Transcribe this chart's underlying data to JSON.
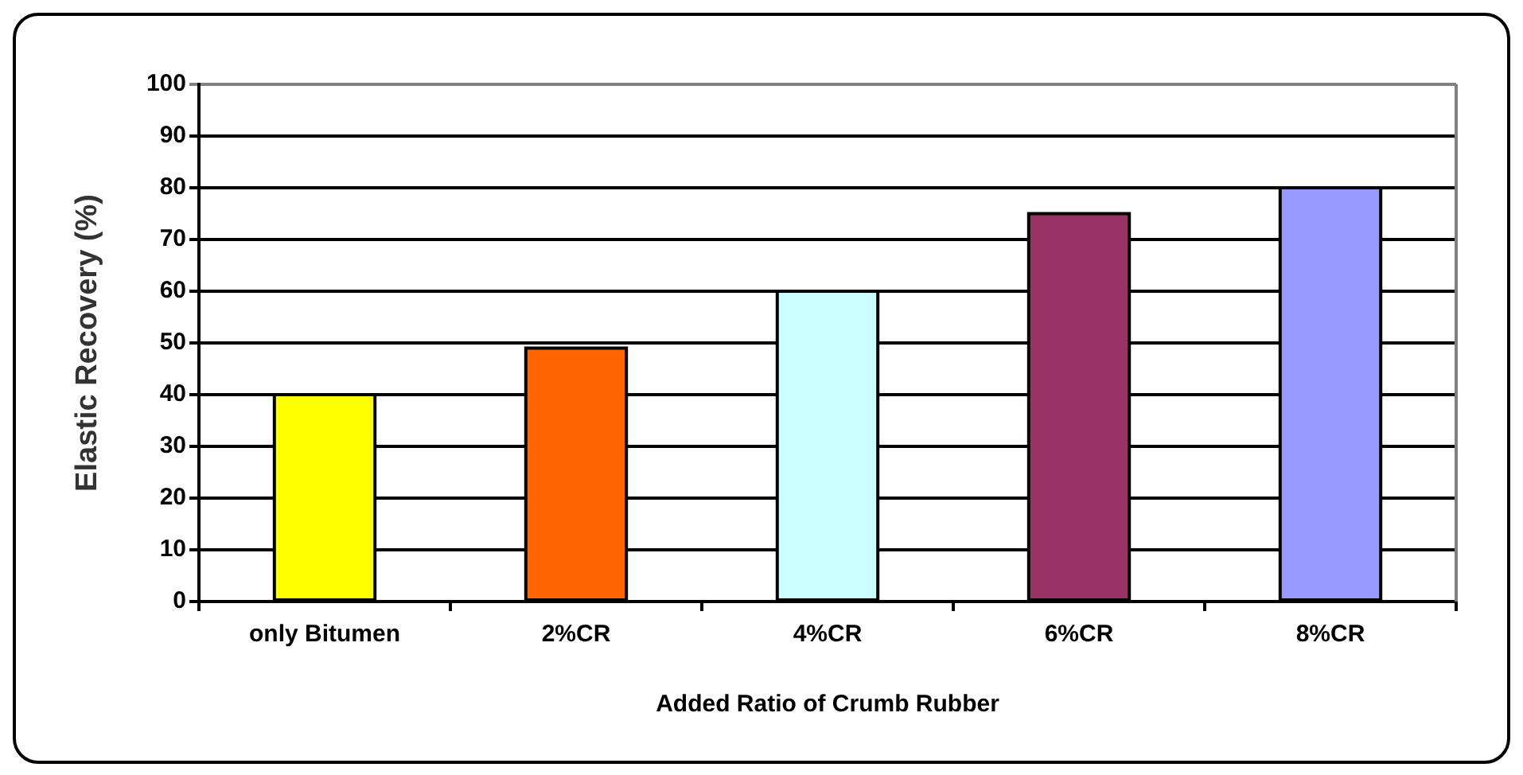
{
  "chart_data": {
    "type": "bar",
    "xlabel": "Added Ratio of Crumb Rubber",
    "ylabel": "Elastic Recovery (%)",
    "categories": [
      "only Bitumen",
      "2%CR",
      "4%CR",
      "6%CR",
      "8%CR"
    ],
    "values": [
      40,
      49,
      60,
      75,
      80
    ],
    "colors": [
      "#ffff00",
      "#ff6600",
      "#ccffff",
      "#993366",
      "#9999ff"
    ],
    "ylim": [
      0,
      100
    ],
    "yticks": [
      0,
      10,
      20,
      30,
      40,
      50,
      60,
      70,
      80,
      90,
      100
    ],
    "grid": "y",
    "legend": false
  }
}
